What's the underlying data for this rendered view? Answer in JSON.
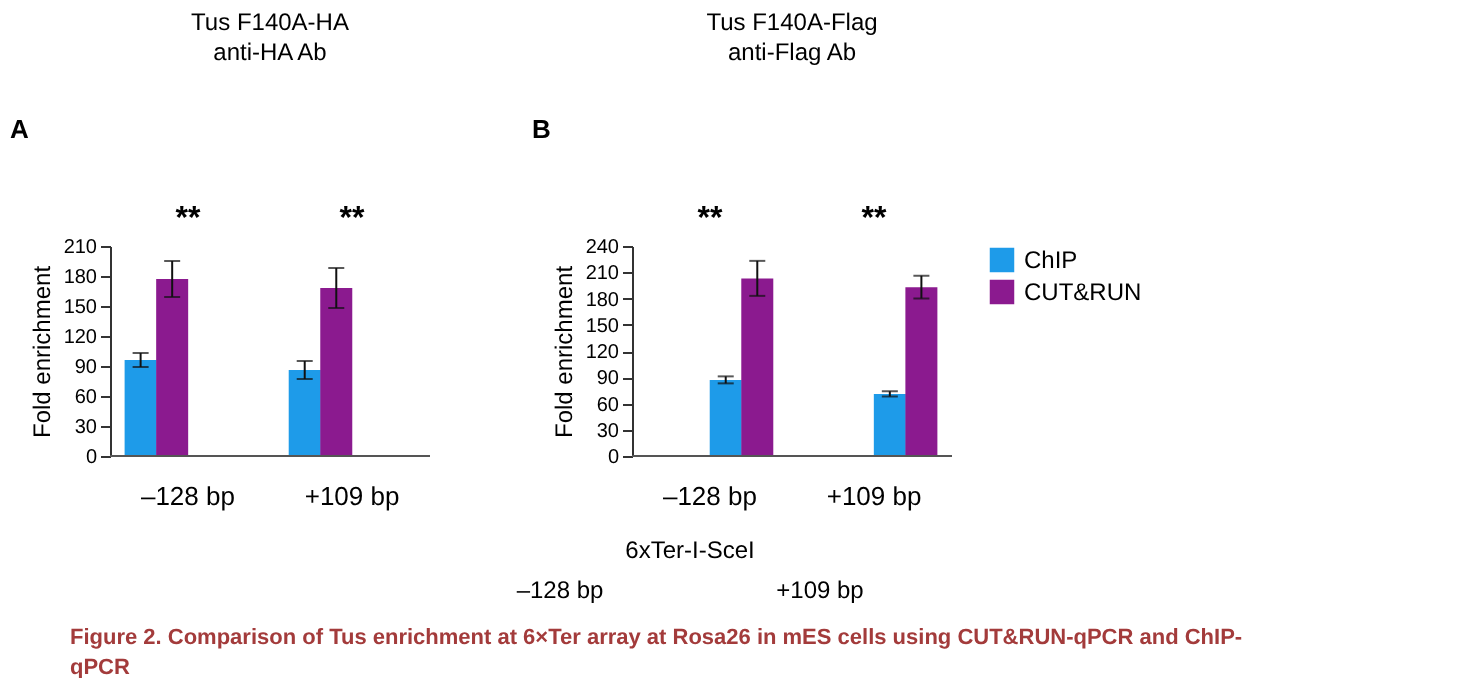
{
  "chart_data": [
    {
      "type": "bar",
      "title": "Tus F140A-HA",
      "subtitle": "anti-HA Ab",
      "ylabel": "Fold enrichment",
      "categories": [
        "–128 bp",
        "+109 bp"
      ],
      "series": [
        {
          "color": "#1e9be9",
          "values": [
            96,
            86
          ],
          "errors": [
            7,
            9
          ]
        },
        {
          "color": "#8b1a8f",
          "values": [
            177,
            168
          ],
          "errors": [
            18,
            20
          ]
        }
      ],
      "ylim": [
        0,
        210
      ],
      "yticks": [
        0,
        30,
        60,
        90,
        120,
        150,
        180,
        210
      ],
      "grid": false,
      "legend": false,
      "annotations": [
        "A",
        "**",
        "**"
      ]
    },
    {
      "type": "bar",
      "title": "Tus F140A-Flag",
      "subtitle": "anti-Flag Ab",
      "ylabel": "Fold enrichment",
      "categories": [
        "–128 bp",
        "+109 bp"
      ],
      "series": [
        {
          "name": "ChIP",
          "color": "#1e9be9",
          "values": [
            87,
            71
          ],
          "errors": [
            4,
            3
          ]
        },
        {
          "name": "CUT&RUN",
          "color": "#8b1a8f",
          "values": [
            203,
            193
          ],
          "errors": [
            20,
            13
          ]
        }
      ],
      "ylim": [
        0,
        240
      ],
      "yticks": [
        0,
        30,
        60,
        90,
        120,
        150,
        180,
        210,
        240
      ],
      "grid": false,
      "legend": "right",
      "annotations": [
        "B",
        "**",
        "**"
      ]
    },
    {
      "type": "other",
      "annotations": [
        "6xTer-I-SceI",
        "–128 bp",
        "+109 bp",
        "Figure 2. Comparison of Tus enrichment at 6×Ter array at Rosa26 in mES cells using CUT&RUN-qPCR and ChIP-qPCR"
      ]
    }
  ]
}
